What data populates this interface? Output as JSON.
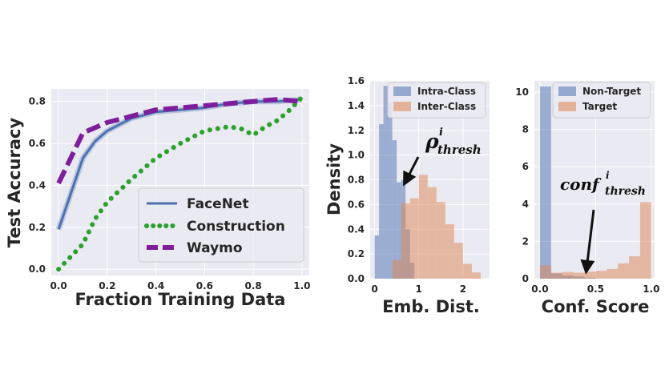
{
  "chart_data": [
    {
      "type": "line",
      "title": "",
      "xlabel": "Fraction Training Data",
      "ylabel": "Test Accuracy",
      "xlim": [
        -0.03,
        1.03
      ],
      "ylim": [
        -0.03,
        0.86
      ],
      "xticks": [
        "0.0",
        "0.2",
        "0.4",
        "0.6",
        "0.8",
        "1.0"
      ],
      "yticks": [
        "0.0",
        "0.2",
        "0.4",
        "0.6",
        "0.8"
      ],
      "legend_position": "lower-right",
      "series": [
        {
          "name": "FaceNet",
          "color": "#4c72b0",
          "style": "solid",
          "x": [
            0.0,
            0.1,
            0.15,
            0.2,
            0.3,
            0.4,
            0.5,
            0.6,
            0.7,
            0.8,
            0.9,
            1.0
          ],
          "y": [
            0.19,
            0.53,
            0.61,
            0.66,
            0.72,
            0.75,
            0.76,
            0.77,
            0.79,
            0.8,
            0.8,
            0.81
          ]
        },
        {
          "name": "Construction",
          "color": "#2ca02c",
          "style": "dotted",
          "x": [
            0.0,
            0.1,
            0.15,
            0.2,
            0.3,
            0.4,
            0.5,
            0.6,
            0.7,
            0.75,
            0.8,
            0.85,
            0.9,
            0.95,
            1.0
          ],
          "y": [
            0.0,
            0.12,
            0.24,
            0.32,
            0.43,
            0.53,
            0.6,
            0.66,
            0.68,
            0.67,
            0.64,
            0.68,
            0.71,
            0.76,
            0.82
          ]
        },
        {
          "name": "Waymo",
          "color": "#7e1e9c",
          "style": "dashed",
          "x": [
            0.0,
            0.1,
            0.2,
            0.3,
            0.4,
            0.5,
            0.6,
            0.7,
            0.8,
            0.9,
            1.0
          ],
          "y": [
            0.41,
            0.65,
            0.7,
            0.73,
            0.76,
            0.77,
            0.78,
            0.79,
            0.8,
            0.81,
            0.8
          ]
        }
      ]
    },
    {
      "type": "histogram",
      "xlabel": "Emb. Dist.",
      "ylabel": "Density",
      "xlim": [
        -0.1,
        2.6
      ],
      "ylim": [
        0.0,
        1.6
      ],
      "xticks": [
        "0",
        "1",
        "2"
      ],
      "yticks": [
        "0.0",
        "0.2",
        "0.4",
        "0.6",
        "0.8",
        "1.0",
        "1.2",
        "1.4",
        "1.6"
      ],
      "legend_position": "top-right",
      "series": [
        {
          "name": "Intra-Class",
          "color": "#4c72b0",
          "bins": [
            [
              0.0,
              0.1,
              0.35
            ],
            [
              0.1,
              0.2,
              1.25
            ],
            [
              0.2,
              0.3,
              1.56
            ],
            [
              0.3,
              0.4,
              1.42
            ],
            [
              0.4,
              0.5,
              1.12
            ],
            [
              0.5,
              0.6,
              0.78
            ],
            [
              0.6,
              0.7,
              0.8
            ],
            [
              0.7,
              0.8,
              0.4
            ],
            [
              0.8,
              0.9,
              0.13
            ]
          ]
        },
        {
          "name": "Inter-Class",
          "color": "#dd8452",
          "bins": [
            [
              0.4,
              0.6,
              0.15
            ],
            [
              0.6,
              0.8,
              0.61
            ],
            [
              0.8,
              1.0,
              0.65
            ],
            [
              1.0,
              1.2,
              0.84
            ],
            [
              1.2,
              1.4,
              0.74
            ],
            [
              1.4,
              1.6,
              0.62
            ],
            [
              1.6,
              1.8,
              0.44
            ],
            [
              1.8,
              2.0,
              0.29
            ],
            [
              2.0,
              2.2,
              0.12
            ],
            [
              2.2,
              2.4,
              0.05
            ]
          ]
        }
      ],
      "annotation": {
        "text": "ρ",
        "sup": "i",
        "sub": "thresh",
        "arrow_to": [
          0.72,
          0.76
        ]
      }
    },
    {
      "type": "histogram",
      "xlabel": "Conf. Score",
      "ylabel": "",
      "xlim": [
        -0.05,
        1.03
      ],
      "ylim": [
        0,
        10.6
      ],
      "xticks": [
        "0.0",
        "0.5",
        "1.0"
      ],
      "yticks": [
        "0",
        "2",
        "4",
        "6",
        "8",
        "10"
      ],
      "legend_position": "top-right",
      "series": [
        {
          "name": "Non-Target",
          "color": "#4c72b0",
          "bins": [
            [
              0.0,
              0.1,
              10.3
            ],
            [
              0.1,
              0.2,
              0.28
            ],
            [
              0.2,
              0.3,
              0.18
            ],
            [
              0.3,
              0.4,
              0.12
            ],
            [
              0.4,
              0.5,
              0.05
            ]
          ]
        },
        {
          "name": "Target",
          "color": "#dd8452",
          "bins": [
            [
              0.0,
              0.1,
              0.72
            ],
            [
              0.1,
              0.2,
              0.32
            ],
            [
              0.2,
              0.3,
              0.36
            ],
            [
              0.3,
              0.4,
              0.32
            ],
            [
              0.4,
              0.5,
              0.38
            ],
            [
              0.5,
              0.6,
              0.42
            ],
            [
              0.6,
              0.7,
              0.52
            ],
            [
              0.7,
              0.8,
              0.82
            ],
            [
              0.8,
              0.9,
              1.2
            ],
            [
              0.9,
              1.0,
              4.1
            ]
          ]
        }
      ],
      "annotation": {
        "text": "conf",
        "sup": "i",
        "sub": "thresh",
        "arrow_to": [
          0.42,
          0.35
        ]
      }
    }
  ]
}
